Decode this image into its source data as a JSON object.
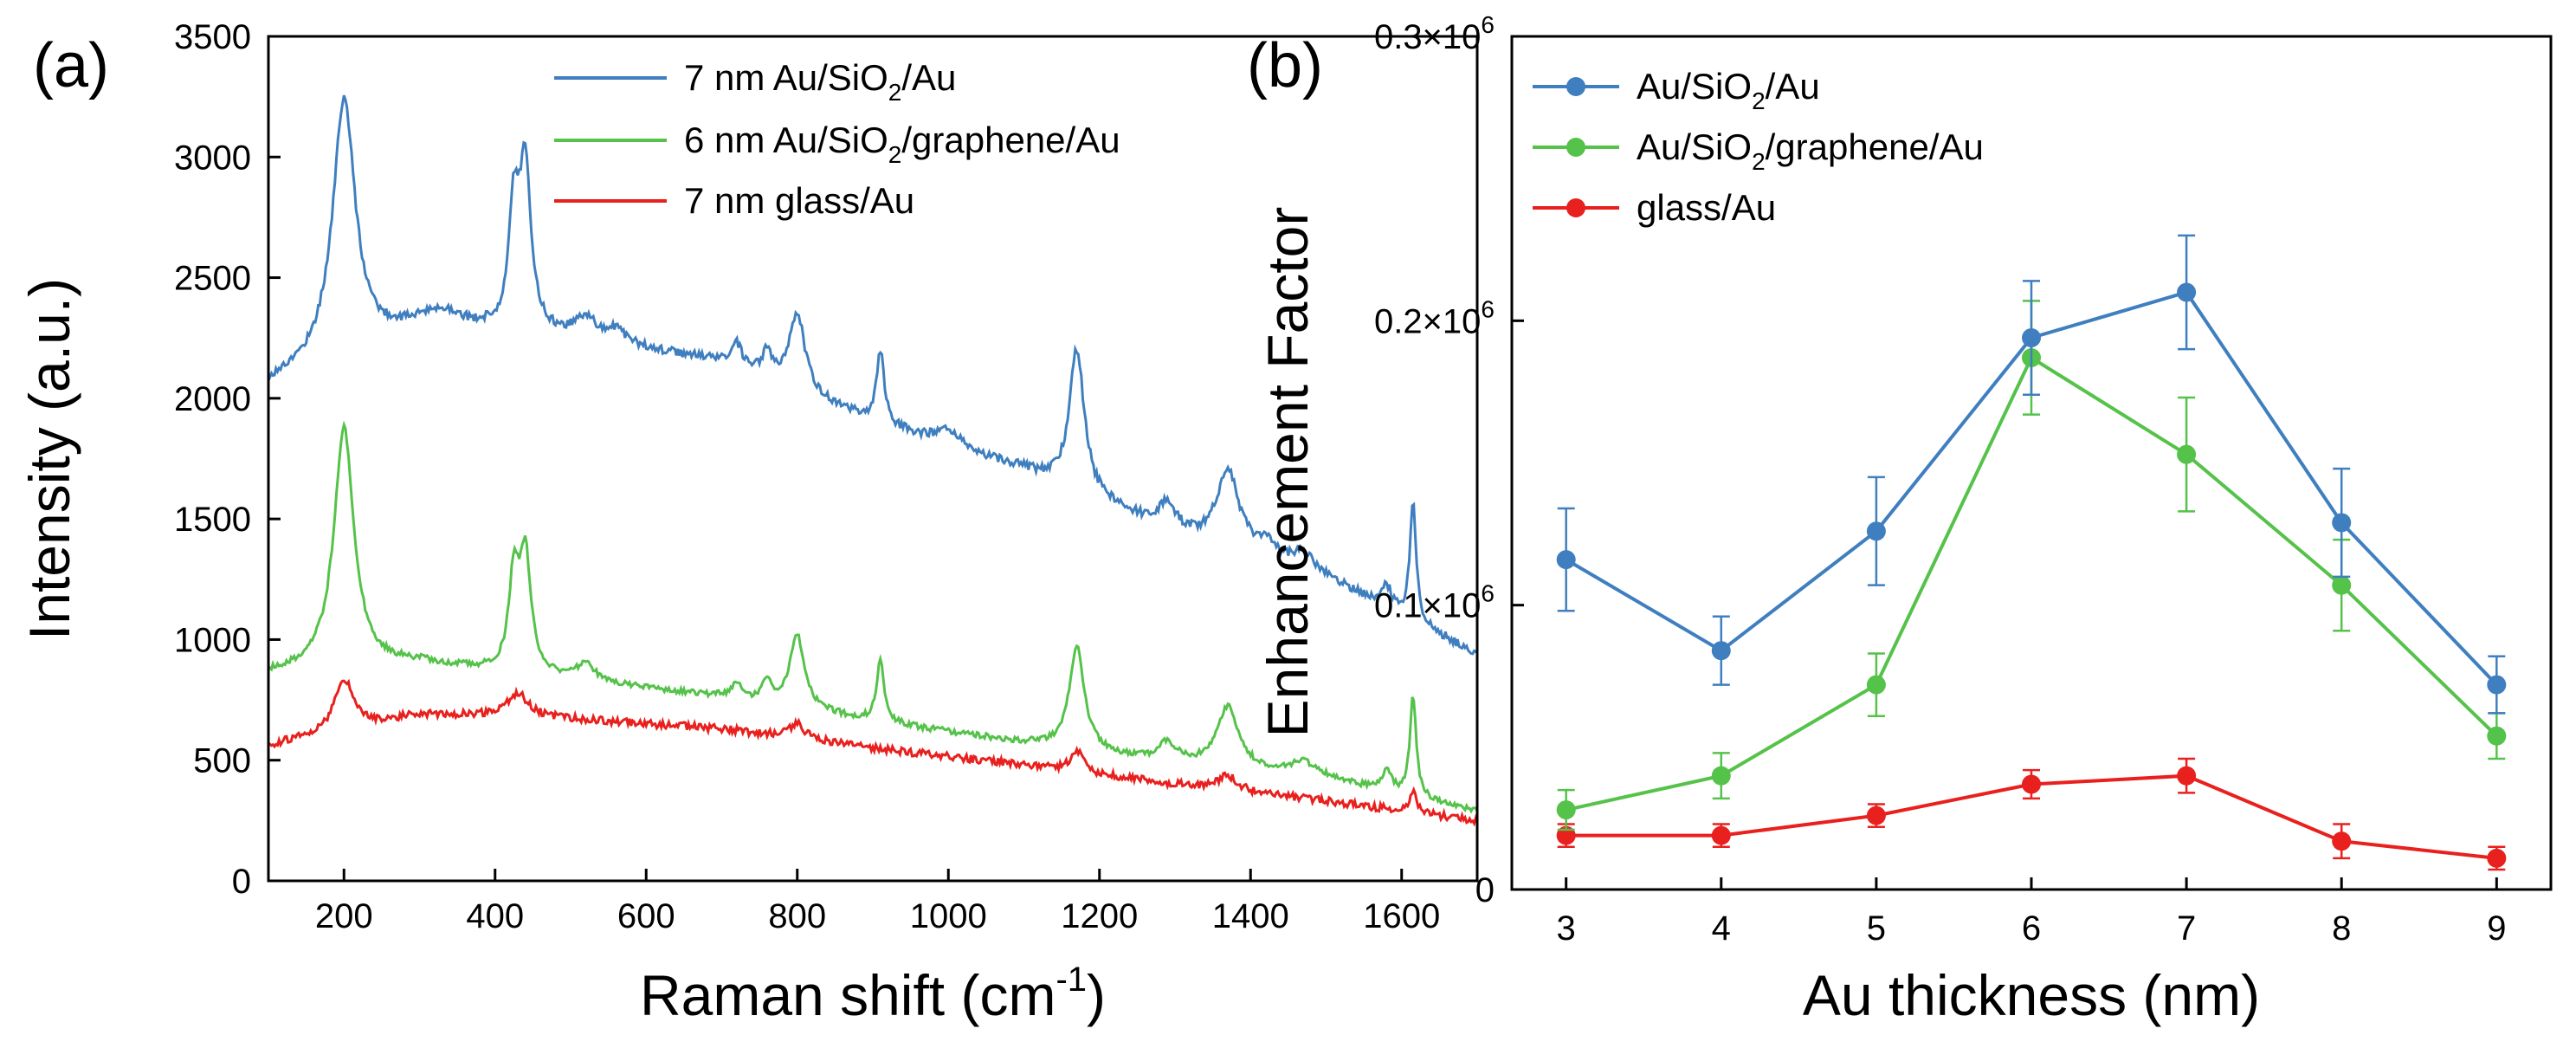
{
  "chart_data": [
    {
      "panel_label": "(a)",
      "type": "line",
      "xlabel": "Raman shift (cm",
      "xlabel_sup": "-1",
      "xlabel_tail": ")",
      "ylabel": "Intensity (a.u.)",
      "xlim": [
        100,
        1700
      ],
      "ylim": [
        0,
        3500
      ],
      "x_ticks": [
        200,
        400,
        600,
        800,
        1000,
        1200,
        1400,
        1600
      ],
      "y_ticks": [
        0,
        500,
        1000,
        1500,
        2000,
        2500,
        3000,
        3500
      ],
      "legend_position": "top-right",
      "series": [
        {
          "name": "7 nm Au/SiO2/Au",
          "label_prefix": "7 nm Au/SiO",
          "label_sub": "2",
          "label_suffix": "/Au",
          "color": "#3f7fbf",
          "baseline": [
            [
              100,
              2060
            ],
            [
              300,
              2300
            ],
            [
              500,
              2250
            ],
            [
              700,
              2150
            ],
            [
              900,
              1900
            ],
            [
              1100,
              1700
            ],
            [
              1300,
              1430
            ],
            [
              1500,
              1250
            ],
            [
              1700,
              940
            ]
          ],
          "peaks": [
            [
              200,
              1060,
              18
            ],
            [
              335,
              60,
              25
            ],
            [
              425,
              480,
              8
            ],
            [
              440,
              680,
              9
            ],
            [
              520,
              90,
              15
            ],
            [
              560,
              60,
              15
            ],
            [
              720,
              90,
              8
            ],
            [
              760,
              100,
              8
            ],
            [
              800,
              330,
              12
            ],
            [
              910,
              300,
              6
            ],
            [
              1000,
              60,
              20
            ],
            [
              1170,
              590,
              12
            ],
            [
              1290,
              110,
              15
            ],
            [
              1370,
              330,
              18
            ],
            [
              1420,
              60,
              15
            ],
            [
              1470,
              70,
              20
            ],
            [
              1580,
              90,
              8
            ],
            [
              1615,
              490,
              5
            ]
          ],
          "noise": 18
        },
        {
          "name": "6 nm Au/SiO2/graphene/Au",
          "label_prefix": "6 nm Au/SiO",
          "label_sub": "2",
          "label_suffix": "/graphene/Au",
          "color": "#55c24a",
          "baseline": [
            [
              100,
              860
            ],
            [
              300,
              900
            ],
            [
              500,
              830
            ],
            [
              700,
              760
            ],
            [
              900,
              660
            ],
            [
              1100,
              570
            ],
            [
              1300,
              480
            ],
            [
              1500,
              420
            ],
            [
              1700,
              290
            ]
          ],
          "peaks": [
            [
              200,
              1000,
              16
            ],
            [
              425,
              380,
              8
            ],
            [
              440,
              480,
              9
            ],
            [
              520,
              70,
              15
            ],
            [
              720,
              70,
              8
            ],
            [
              760,
              80,
              8
            ],
            [
              800,
              300,
              12
            ],
            [
              910,
              250,
              6
            ],
            [
              1170,
              430,
              12
            ],
            [
              1290,
              80,
              15
            ],
            [
              1370,
              260,
              18
            ],
            [
              1470,
              60,
              20
            ],
            [
              1580,
              80,
              8
            ],
            [
              1615,
              420,
              5
            ]
          ],
          "noise": 12
        },
        {
          "name": "7 nm glass/Au",
          "label": "7 nm glass/Au",
          "color": "#e8201e",
          "baseline": [
            [
              100,
              560
            ],
            [
              300,
              690
            ],
            [
              500,
              670
            ],
            [
              700,
              630
            ],
            [
              900,
              550
            ],
            [
              1100,
              480
            ],
            [
              1300,
              400
            ],
            [
              1500,
              330
            ],
            [
              1700,
              250
            ]
          ],
          "peaks": [
            [
              200,
              210,
              15
            ],
            [
              430,
              100,
              18
            ],
            [
              800,
              60,
              12
            ],
            [
              1170,
              90,
              10
            ],
            [
              1370,
              60,
              15
            ],
            [
              1615,
              90,
              5
            ]
          ],
          "noise": 16
        }
      ]
    },
    {
      "panel_label": "(b)",
      "type": "line",
      "xlabel": "Au thickness (nm)",
      "ylabel": "Enhancement Factor",
      "xlim": [
        2.65,
        9.35
      ],
      "ylim": [
        0,
        300000
      ],
      "x_ticks": [
        3,
        4,
        5,
        6,
        7,
        8,
        9
      ],
      "y_ticks": [
        0,
        100000,
        200000,
        300000
      ],
      "y_tick_labels": [
        {
          "value": 0,
          "mantissa": "0",
          "exp": ""
        },
        {
          "value": 100000,
          "mantissa": "0.1×10",
          "exp": "6"
        },
        {
          "value": 200000,
          "mantissa": "0.2×10",
          "exp": "6"
        },
        {
          "value": 300000,
          "mantissa": "0.3×10",
          "exp": "6"
        }
      ],
      "legend_position": "top-left",
      "x": [
        3,
        4,
        5,
        6,
        7,
        8,
        9
      ],
      "series": [
        {
          "name": "Au/SiO2/Au",
          "label_prefix": "Au/SiO",
          "label_sub": "2",
          "label_suffix": "/Au",
          "color": "#3f7fbf",
          "values": [
            116000,
            84000,
            126000,
            194000,
            210000,
            129000,
            72000
          ],
          "errors": [
            18000,
            12000,
            19000,
            20000,
            20000,
            19000,
            10000
          ]
        },
        {
          "name": "Au/SiO2/graphene/Au",
          "label_prefix": "Au/SiO",
          "label_sub": "2",
          "label_suffix": "/graphene/Au",
          "color": "#55c24a",
          "values": [
            28000,
            40000,
            72000,
            187000,
            153000,
            107000,
            54000
          ],
          "errors": [
            7000,
            8000,
            11000,
            20000,
            20000,
            16000,
            8000
          ]
        },
        {
          "name": "glass/Au",
          "label": "glass/Au",
          "color": "#e8201e",
          "values": [
            19000,
            19000,
            26000,
            37000,
            40000,
            17000,
            11000
          ],
          "errors": [
            4000,
            4000,
            4000,
            5000,
            6000,
            6000,
            4000
          ]
        }
      ]
    }
  ]
}
